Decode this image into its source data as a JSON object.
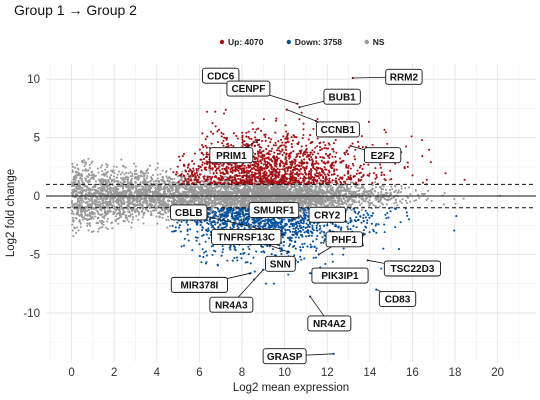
{
  "title": "Group 1 → Group 2",
  "chart_data": {
    "type": "scatter",
    "title": "Group 1 → Group 2",
    "xlabel": "Log2 mean expression",
    "ylabel": "Log2 fold change",
    "xlim": [
      -1.2,
      21.8
    ],
    "ylim": [
      -14.2,
      11.3
    ],
    "x_ticks": [
      0,
      2,
      4,
      6,
      8,
      10,
      12,
      14,
      16,
      18,
      20
    ],
    "y_ticks": [
      -10,
      -5,
      0,
      5,
      10
    ],
    "grid": true,
    "threshold_lines": [
      1,
      -1
    ],
    "legend_position": "top",
    "legend": [
      {
        "label": "Up: 4070",
        "color": "#a50f15"
      },
      {
        "label": "Down: 3758",
        "color": "#08519c"
      },
      {
        "label": "NS",
        "color": "#999999"
      }
    ],
    "series": [
      {
        "name": "Up: 4070",
        "color": "#a50f15",
        "count": 4070
      },
      {
        "name": "Down: 3758",
        "color": "#08519c",
        "count": 3758
      },
      {
        "name": "NS",
        "color": "#999999"
      }
    ],
    "labeled_genes": [
      {
        "gene": "RRM2",
        "x": 13.2,
        "y": 10.1,
        "lx": 15.6,
        "ly": 10.2
      },
      {
        "gene": "CDC6",
        "x": 9.0,
        "y": 8.6,
        "lx": 7.0,
        "ly": 10.3
      },
      {
        "gene": "CENPF",
        "x": 10.6,
        "y": 7.9,
        "lx": 8.3,
        "ly": 9.2
      },
      {
        "gene": "BUB1",
        "x": 10.7,
        "y": 7.6,
        "lx": 12.7,
        "ly": 8.5
      },
      {
        "gene": "CCNB1",
        "x": 10.1,
        "y": 7.4,
        "lx": 12.5,
        "ly": 5.7
      },
      {
        "gene": "PRIM1",
        "x": 8.8,
        "y": 4.8,
        "lx": 7.5,
        "ly": 3.5
      },
      {
        "gene": "E2F2",
        "x": 13.1,
        "y": 4.3,
        "lx": 14.6,
        "ly": 3.5
      },
      {
        "gene": "CBLB",
        "x": 10.0,
        "y": -3.3,
        "lx": 5.5,
        "ly": -1.4
      },
      {
        "gene": "SMURF1",
        "x": 10.5,
        "y": -2.0,
        "lx": 9.5,
        "ly": -1.2
      },
      {
        "gene": "CRY2",
        "x": 12.0,
        "y": -2.5,
        "lx": 12.0,
        "ly": -1.6
      },
      {
        "gene": "TNFRSF13C",
        "x": 10.2,
        "y": -4.8,
        "lx": 8.2,
        "ly": -3.5
      },
      {
        "gene": "PHF1",
        "x": 11.6,
        "y": -5.0,
        "lx": 12.8,
        "ly": -3.7
      },
      {
        "gene": "SNN",
        "x": 10.5,
        "y": -5.8,
        "lx": 9.8,
        "ly": -5.8
      },
      {
        "gene": "TSC22D3",
        "x": 13.9,
        "y": -5.5,
        "lx": 16.0,
        "ly": -6.2
      },
      {
        "gene": "MIR378I",
        "x": 8.4,
        "y": -6.6,
        "lx": 6.0,
        "ly": -7.6
      },
      {
        "gene": "PIK3IP1",
        "x": 11.2,
        "y": -6.6,
        "lx": 12.6,
        "ly": -6.8
      },
      {
        "gene": "NR4A3",
        "x": 9.0,
        "y": -6.3,
        "lx": 7.5,
        "ly": -9.3
      },
      {
        "gene": "CD83",
        "x": 14.3,
        "y": -8.0,
        "lx": 15.3,
        "ly": -8.8
      },
      {
        "gene": "NR4A2",
        "x": 11.2,
        "y": -8.6,
        "lx": 12.1,
        "ly": -10.9
      },
      {
        "gene": "GRASP",
        "x": 12.3,
        "y": -13.5,
        "lx": 10.0,
        "ly": -13.7
      }
    ]
  }
}
